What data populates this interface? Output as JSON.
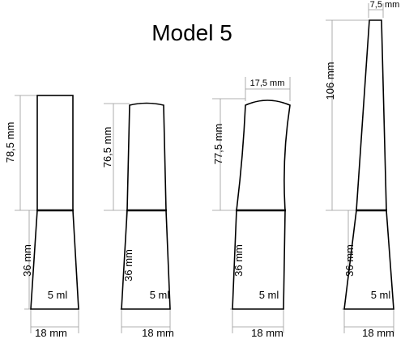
{
  "title": "Model 5",
  "bottles": [
    {
      "cap_height": "78,5 mm",
      "body_height": "36 mm",
      "volume": "5 ml",
      "width": "18 mm"
    },
    {
      "cap_height": "76,5 mm",
      "body_height": "36 mm",
      "volume": "5 ml",
      "width": "18 mm"
    },
    {
      "top_width": "17,5 mm",
      "cap_height": "77,5 mm",
      "body_height": "36 mm",
      "volume": "5 ml",
      "width": "18 mm"
    },
    {
      "top_width": "7,5 mm",
      "cap_height": "106  mm",
      "body_height": "36 mm",
      "volume": "5 ml",
      "width": "18 mm"
    }
  ]
}
